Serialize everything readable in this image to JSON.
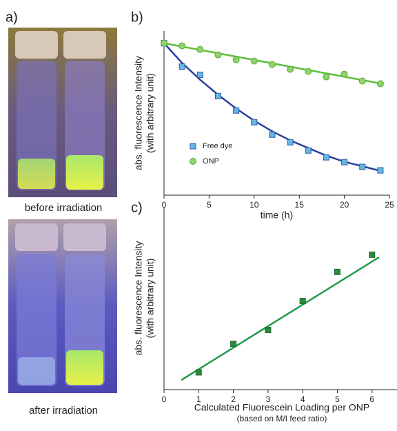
{
  "panel_a": {
    "label": "a)",
    "captions": [
      "before irradiation",
      "after irradiation"
    ]
  },
  "chart_data": [
    {
      "type": "scatter",
      "label": "b)",
      "xlabel": [
        "time (h)"
      ],
      "ylabel": [
        "abs. fluorescence Intensity",
        "(with arbitrary unit)"
      ],
      "xlim": [
        0,
        25
      ],
      "ylim": [
        0,
        1.08
      ],
      "xticks": [
        0,
        5,
        10,
        15,
        20,
        25
      ],
      "legend": "center-left",
      "series": [
        {
          "name": "Free dye",
          "color": "#6ab4e4",
          "edge": "#2a5ea8",
          "marker": "square",
          "x": [
            0,
            2,
            4,
            6,
            8,
            10,
            12,
            14,
            16,
            18,
            20,
            22,
            24
          ],
          "values": [
            1.0,
            0.846,
            0.792,
            0.652,
            0.557,
            0.48,
            0.398,
            0.348,
            0.294,
            0.249,
            0.217,
            0.186,
            0.163
          ]
        },
        {
          "name": "ONP",
          "color": "#8fd46a",
          "edge": "#5aa83a",
          "marker": "circle",
          "x": [
            0,
            2,
            4,
            6,
            8,
            10,
            12,
            14,
            16,
            18,
            20,
            22,
            24
          ],
          "values": [
            1.0,
            0.982,
            0.959,
            0.923,
            0.891,
            0.882,
            0.86,
            0.828,
            0.814,
            0.778,
            0.796,
            0.751,
            0.733
          ]
        }
      ],
      "fits": [
        {
          "color": "#2b3f9a",
          "x": [
            0,
            2,
            4,
            6,
            8,
            10,
            12,
            14,
            16,
            18,
            20,
            22,
            24
          ],
          "values": [
            1.0,
            0.87,
            0.76,
            0.66,
            0.57,
            0.49,
            0.42,
            0.36,
            0.31,
            0.26,
            0.22,
            0.19,
            0.16
          ]
        },
        {
          "color": "#5cbf3c",
          "x": [
            0,
            24
          ],
          "values": [
            1.0,
            0.735
          ]
        }
      ]
    },
    {
      "type": "scatter",
      "label": "c)",
      "xlabel": [
        "Calculated Fluorescein Loading per ONP",
        "(based on M/I feed ratio)"
      ],
      "ylabel": [
        "abs. fluorescence Intensity",
        "(with arbitrary unit)"
      ],
      "xlim": [
        0,
        6.8
      ],
      "ylim": [
        0,
        9.1
      ],
      "xticks": [
        0,
        1,
        2,
        3,
        4,
        5,
        6
      ],
      "series": [
        {
          "color": "#2e8b3c",
          "edge": "#1f6a2c",
          "marker": "square",
          "x": [
            1,
            2,
            3,
            4,
            5,
            6
          ],
          "values": [
            0.86,
            2.28,
            2.97,
            4.41,
            5.86,
            6.72
          ]
        }
      ],
      "fits": [
        {
          "color": "#1f9a4a",
          "x": [
            0.5,
            6.2
          ],
          "values": [
            0.48,
            6.59
          ]
        }
      ]
    }
  ]
}
